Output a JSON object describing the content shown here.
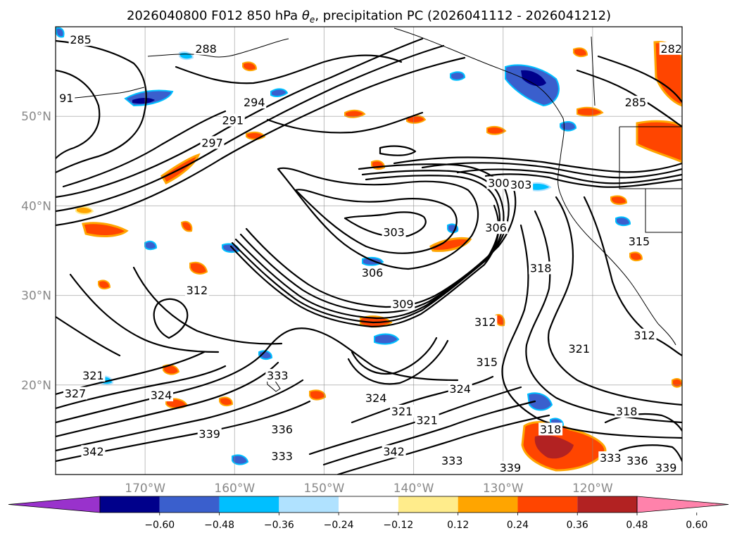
{
  "chart_data": {
    "type": "contour",
    "title_prefix": "2026040800 F012 850 hPa ",
    "title_symbol": "θ",
    "title_subscript": "e",
    "title_suffix": ", precipitation PC (2026041112 - 2026041212)",
    "lat_ticks": [
      {
        "value": 50,
        "label": "50°N"
      },
      {
        "value": 40,
        "label": "40°N"
      },
      {
        "value": 30,
        "label": "30°N"
      },
      {
        "value": 20,
        "label": "20°N"
      }
    ],
    "lon_ticks": [
      {
        "value": -170,
        "label": "170°W"
      },
      {
        "value": -160,
        "label": "160°W"
      },
      {
        "value": -150,
        "label": "150°W"
      },
      {
        "value": -140,
        "label": "140°W"
      },
      {
        "value": -130,
        "label": "130°W"
      },
      {
        "value": -120,
        "label": "120°W"
      }
    ],
    "lon_range": [
      -180,
      -110
    ],
    "lat_range": [
      10,
      60
    ],
    "grid": true,
    "colorbar": {
      "orientation": "horizontal",
      "extend": "both",
      "colors": [
        "#9932cc",
        "#00008b",
        "#3a5fcd",
        "#00bfff",
        "#b0e2ff",
        "#ffffff",
        "#ffec8b",
        "#ffa500",
        "#ff4500",
        "#b22222",
        "#ff82ab"
      ],
      "tick_labels": [
        "−0.60",
        "−0.48",
        "−0.36",
        "−0.24",
        "−0.12",
        "0.12",
        "0.24",
        "0.36",
        "0.48",
        "0.60"
      ]
    },
    "contour_labels": [
      {
        "text": "285",
        "lon": -177.2,
        "lat": 58.5
      },
      {
        "text": "288",
        "lon": -163.2,
        "lat": 57.5
      },
      {
        "text": "91",
        "lon": -178.8,
        "lat": 52.0
      },
      {
        "text": "291",
        "lon": -160.2,
        "lat": 49.5
      },
      {
        "text": "294",
        "lon": -157.8,
        "lat": 51.5
      },
      {
        "text": "297",
        "lon": -162.5,
        "lat": 47.0
      },
      {
        "text": "285",
        "lon": -115.2,
        "lat": 51.5
      },
      {
        "text": "282",
        "lon": -111.2,
        "lat": 57.5
      },
      {
        "text": "300",
        "lon": -130.5,
        "lat": 42.5
      },
      {
        "text": "303",
        "lon": -128.0,
        "lat": 42.3
      },
      {
        "text": "306",
        "lon": -130.8,
        "lat": 37.5
      },
      {
        "text": "303",
        "lon": -142.2,
        "lat": 37.0
      },
      {
        "text": "306",
        "lon": -144.6,
        "lat": 32.5
      },
      {
        "text": "309",
        "lon": -141.2,
        "lat": 29.0
      },
      {
        "text": "312",
        "lon": -164.2,
        "lat": 30.5
      },
      {
        "text": "312",
        "lon": -132.0,
        "lat": 27.0
      },
      {
        "text": "315",
        "lon": -131.8,
        "lat": 22.5
      },
      {
        "text": "318",
        "lon": -125.8,
        "lat": 33.0
      },
      {
        "text": "312",
        "lon": -114.2,
        "lat": 25.5
      },
      {
        "text": "321",
        "lon": -121.5,
        "lat": 24.0
      },
      {
        "text": "321",
        "lon": -175.8,
        "lat": 21.0
      },
      {
        "text": "327",
        "lon": -177.8,
        "lat": 19.0
      },
      {
        "text": "324",
        "lon": -168.2,
        "lat": 18.8
      },
      {
        "text": "333",
        "lon": -155.2,
        "lat": 21.0
      },
      {
        "text": "336",
        "lon": -154.7,
        "lat": 15.0
      },
      {
        "text": "339",
        "lon": -162.8,
        "lat": 14.5
      },
      {
        "text": "342",
        "lon": -175.8,
        "lat": 12.5
      },
      {
        "text": "333",
        "lon": -154.7,
        "lat": 12.0
      },
      {
        "text": "324",
        "lon": -144.2,
        "lat": 18.5
      },
      {
        "text": "321",
        "lon": -141.3,
        "lat": 17.0
      },
      {
        "text": "321",
        "lon": -138.5,
        "lat": 16.0
      },
      {
        "text": "342",
        "lon": -142.2,
        "lat": 12.5
      },
      {
        "text": "333",
        "lon": -135.7,
        "lat": 11.5
      },
      {
        "text": "318",
        "lon": -124.7,
        "lat": 15.0
      },
      {
        "text": "318",
        "lon": -116.2,
        "lat": 17.0
      },
      {
        "text": "339",
        "lon": -111.8,
        "lat": 10.7
      },
      {
        "text": "339",
        "lon": -129.2,
        "lat": 10.7
      },
      {
        "text": "336",
        "lon": -115.0,
        "lat": 11.5
      },
      {
        "text": "333",
        "lon": -118.0,
        "lat": 11.8
      },
      {
        "text": "315",
        "lon": -114.8,
        "lat": 36.0
      },
      {
        "text": "324",
        "lon": -134.8,
        "lat": 19.5
      }
    ]
  }
}
